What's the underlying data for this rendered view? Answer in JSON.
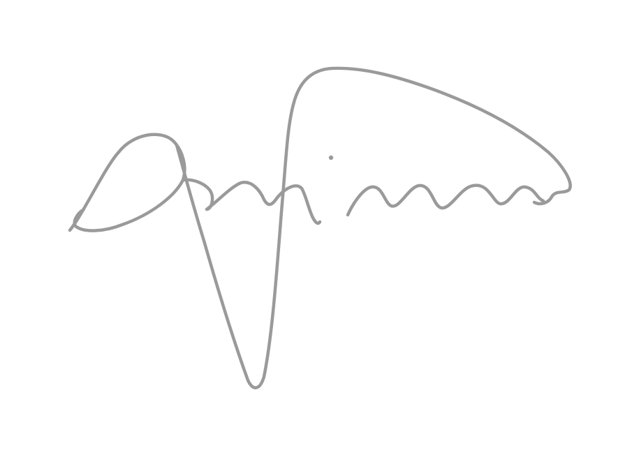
{
  "background_color": "#ffffff",
  "ink_color": "#9a9a9a"
}
